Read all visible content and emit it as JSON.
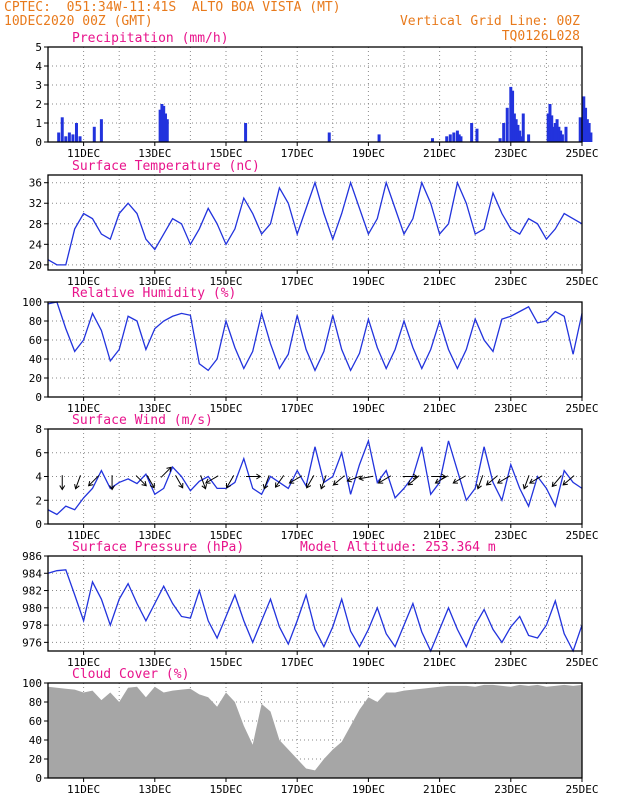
{
  "header": {
    "line1": "CPTEC:  051:34W-11:41S  ALTO BOA VISTA (MT)",
    "line2": "10DEC2020 00Z (GMT)",
    "grid_note": "Vertical Grid Line: 00Z",
    "code": "TQ0126L028"
  },
  "colors": {
    "header": "#e87a1c",
    "title": "#e8148c",
    "series": "#2233dd",
    "cloud": "#a6a6a6",
    "grid": "#8a8a8a"
  },
  "date_labels": [
    "11DEC",
    "13DEC",
    "15DEC",
    "17DEC",
    "19DEC",
    "21DEC",
    "23DEC",
    "25DEC"
  ],
  "chart_data": [
    {
      "type": "bar",
      "title": "Precipitation (mm/h)",
      "x_unit": "days since 10DEC2020 00Z",
      "ylim": [
        0,
        5
      ],
      "yticks": [
        0,
        1,
        2,
        3,
        4,
        5
      ],
      "x": [
        0.3,
        0.4,
        0.5,
        0.6,
        0.7,
        0.8,
        0.9,
        1.3,
        1.5,
        3.15,
        3.2,
        3.25,
        3.3,
        3.35,
        5.55,
        7.9,
        9.3,
        10.8,
        11.2,
        11.3,
        11.4,
        11.5,
        11.55,
        11.6,
        11.9,
        12.05,
        12.7,
        12.8,
        12.9,
        13.0,
        13.05,
        13.1,
        13.15,
        13.2,
        13.25,
        13.3,
        13.35,
        13.5,
        14.05,
        14.1,
        14.15,
        14.2,
        14.25,
        14.3,
        14.35,
        14.4,
        14.45,
        14.55,
        14.95,
        15.0,
        15.05,
        15.1,
        15.15,
        15.2,
        15.25
      ],
      "values": [
        0.5,
        1.3,
        0.3,
        0.5,
        0.4,
        1.0,
        0.3,
        0.8,
        1.2,
        1.7,
        2.0,
        1.9,
        1.5,
        1.2,
        1.0,
        0.5,
        0.4,
        0.2,
        0.3,
        0.4,
        0.5,
        0.6,
        0.4,
        0.3,
        1.0,
        0.7,
        0.2,
        1.0,
        1.8,
        2.9,
        2.7,
        1.5,
        1.2,
        0.9,
        0.6,
        0.3,
        1.5,
        0.4,
        1.5,
        2.0,
        1.4,
        0.8,
        1.0,
        1.2,
        0.8,
        0.6,
        0.4,
        0.8,
        1.3,
        0.8,
        2.4,
        1.8,
        1.2,
        1.0,
        0.5
      ]
    },
    {
      "type": "line",
      "title": "Surface Temperature (nC)",
      "x_unit": "days since 10DEC2020 00Z",
      "ylim": [
        19,
        37.5
      ],
      "yticks": [
        20,
        24,
        28,
        32,
        36
      ],
      "x": [
        0,
        0.25,
        0.5,
        0.75,
        1.0,
        1.25,
        1.5,
        1.75,
        2.0,
        2.25,
        2.5,
        2.75,
        3.0,
        3.25,
        3.5,
        3.75,
        4.0,
        4.25,
        4.5,
        4.75,
        5.0,
        5.25,
        5.5,
        5.75,
        6.0,
        6.25,
        6.5,
        6.75,
        7.0,
        7.25,
        7.5,
        7.75,
        8.0,
        8.25,
        8.5,
        8.75,
        9.0,
        9.25,
        9.5,
        9.75,
        10.0,
        10.25,
        10.5,
        10.75,
        11.0,
        11.25,
        11.5,
        11.75,
        12.0,
        12.25,
        12.5,
        12.75,
        13.0,
        13.25,
        13.5,
        13.75,
        14.0,
        14.25,
        14.5,
        14.75,
        15.0
      ],
      "values": [
        21,
        20,
        20,
        27,
        30,
        29,
        26,
        25,
        30,
        32,
        30,
        25,
        23,
        26,
        29,
        28,
        24,
        27,
        31,
        28,
        24,
        27,
        33,
        30,
        26,
        28,
        35,
        32,
        26,
        31,
        36,
        30,
        25,
        30,
        36,
        31,
        26,
        29,
        36,
        31,
        26,
        29,
        36,
        32,
        26,
        28,
        36,
        32,
        26,
        27,
        34,
        30,
        27,
        26,
        29,
        28,
        25,
        27,
        30,
        29,
        28
      ]
    },
    {
      "type": "line",
      "title": "Relative Humidity (%)",
      "x_unit": "days since 10DEC2020 00Z",
      "ylim": [
        0,
        100
      ],
      "yticks": [
        0,
        20,
        40,
        60,
        80,
        100
      ],
      "x": [
        0,
        0.25,
        0.5,
        0.75,
        1.0,
        1.25,
        1.5,
        1.75,
        2.0,
        2.25,
        2.5,
        2.75,
        3.0,
        3.25,
        3.5,
        3.75,
        4.0,
        4.25,
        4.5,
        4.75,
        5.0,
        5.25,
        5.5,
        5.75,
        6.0,
        6.25,
        6.5,
        6.75,
        7.0,
        7.25,
        7.5,
        7.75,
        8.0,
        8.25,
        8.5,
        8.75,
        9.0,
        9.25,
        9.5,
        9.75,
        10.0,
        10.25,
        10.5,
        10.75,
        11.0,
        11.25,
        11.5,
        11.75,
        12.0,
        12.25,
        12.5,
        12.75,
        13.0,
        13.25,
        13.5,
        13.75,
        14.0,
        14.25,
        14.5,
        14.75,
        15.0
      ],
      "values": [
        98,
        100,
        72,
        48,
        60,
        88,
        70,
        38,
        50,
        85,
        80,
        50,
        72,
        80,
        85,
        88,
        86,
        35,
        28,
        40,
        80,
        52,
        30,
        48,
        88,
        56,
        30,
        45,
        86,
        50,
        28,
        48,
        86,
        50,
        28,
        46,
        82,
        52,
        30,
        50,
        80,
        52,
        30,
        50,
        80,
        50,
        30,
        50,
        82,
        60,
        48,
        82,
        85,
        90,
        95,
        78,
        80,
        90,
        85,
        45,
        88
      ]
    },
    {
      "type": "line",
      "title": "Surface Wind (m/s)",
      "x_unit": "days since 10DEC2020 00Z",
      "ylim": [
        0,
        8
      ],
      "yticks": [
        0,
        2,
        4,
        6,
        8
      ],
      "x": [
        0,
        0.25,
        0.5,
        0.75,
        1.0,
        1.25,
        1.5,
        1.75,
        2.0,
        2.25,
        2.5,
        2.75,
        3.0,
        3.25,
        3.5,
        3.75,
        4.0,
        4.25,
        4.5,
        4.75,
        5.0,
        5.25,
        5.5,
        5.75,
        6.0,
        6.25,
        6.5,
        6.75,
        7.0,
        7.25,
        7.5,
        7.75,
        8.0,
        8.25,
        8.5,
        8.75,
        9.0,
        9.25,
        9.5,
        9.75,
        10.0,
        10.25,
        10.5,
        10.75,
        11.0,
        11.25,
        11.5,
        11.75,
        12.0,
        12.25,
        12.5,
        12.75,
        13.0,
        13.25,
        13.5,
        13.75,
        14.0,
        14.25,
        14.5,
        14.75,
        15.0
      ],
      "values": [
        1.2,
        0.8,
        1.5,
        1.2,
        2.2,
        3.0,
        4.5,
        3.0,
        3.5,
        3.8,
        3.4,
        4.2,
        2.5,
        3.0,
        4.8,
        4.0,
        2.8,
        3.6,
        4.0,
        3.0,
        3.0,
        3.5,
        5.5,
        3.0,
        2.5,
        4.0,
        3.5,
        3.0,
        4.5,
        3.2,
        6.5,
        3.5,
        4.0,
        6.0,
        2.5,
        5.0,
        7.0,
        3.5,
        4.5,
        2.2,
        3.0,
        4.0,
        6.5,
        2.5,
        3.5,
        7.0,
        4.5,
        2.0,
        3.0,
        6.5,
        3.5,
        2.0,
        5.0,
        3.0,
        1.5,
        4.0,
        3.0,
        1.5,
        4.5,
        3.5,
        3.0
      ]
    },
    {
      "type": "line",
      "title": "Surface Pressure (hPa)",
      "subtitle": "Model Altitude: 253.364 m",
      "x_unit": "days since 10DEC2020 00Z",
      "ylim": [
        975,
        986
      ],
      "yticks": [
        976,
        978,
        980,
        982,
        984,
        986
      ],
      "x": [
        0,
        0.25,
        0.5,
        0.75,
        1.0,
        1.25,
        1.5,
        1.75,
        2.0,
        2.25,
        2.5,
        2.75,
        3.0,
        3.25,
        3.5,
        3.75,
        4.0,
        4.25,
        4.5,
        4.75,
        5.0,
        5.25,
        5.5,
        5.75,
        6.0,
        6.25,
        6.5,
        6.75,
        7.0,
        7.25,
        7.5,
        7.75,
        8.0,
        8.25,
        8.5,
        8.75,
        9.0,
        9.25,
        9.5,
        9.75,
        10.0,
        10.25,
        10.5,
        10.75,
        11.0,
        11.25,
        11.5,
        11.75,
        12.0,
        12.25,
        12.5,
        12.75,
        13.0,
        13.25,
        13.5,
        13.75,
        14.0,
        14.25,
        14.5,
        14.75,
        15.0
      ],
      "values": [
        984,
        984.3,
        984.4,
        981.5,
        978.5,
        983,
        981,
        978,
        981,
        982.8,
        980.5,
        978.5,
        980.5,
        982.5,
        980.5,
        979,
        978.8,
        982,
        978.5,
        976.5,
        979,
        981.5,
        978.5,
        976,
        978.5,
        981,
        977.8,
        975.8,
        978.5,
        981.5,
        977.5,
        975.5,
        977.8,
        981,
        977.3,
        975.5,
        977.5,
        980,
        977,
        975.5,
        978,
        980.5,
        977.2,
        975,
        977.5,
        980,
        977.5,
        975.5,
        978,
        979.8,
        977.5,
        976,
        977.8,
        979,
        976.8,
        976.5,
        978,
        980.8,
        977,
        975,
        978
      ]
    },
    {
      "type": "area",
      "title": "Cloud Cover (%)",
      "x_unit": "days since 10DEC2020 00Z",
      "ylim": [
        0,
        100
      ],
      "yticks": [
        0,
        20,
        40,
        60,
        80,
        100
      ],
      "x": [
        0,
        0.25,
        0.5,
        0.75,
        1.0,
        1.25,
        1.5,
        1.75,
        2.0,
        2.25,
        2.5,
        2.75,
        3.0,
        3.25,
        3.5,
        3.75,
        4.0,
        4.25,
        4.5,
        4.75,
        5.0,
        5.25,
        5.5,
        5.75,
        6.0,
        6.25,
        6.5,
        6.75,
        7.0,
        7.25,
        7.5,
        7.75,
        8.0,
        8.25,
        8.5,
        8.75,
        9.0,
        9.25,
        9.5,
        9.75,
        10.0,
        10.25,
        10.5,
        10.75,
        11.0,
        11.25,
        11.5,
        11.75,
        12.0,
        12.25,
        12.5,
        12.75,
        13.0,
        13.25,
        13.5,
        13.75,
        14.0,
        14.25,
        14.5,
        14.75,
        15.0
      ],
      "values": [
        96,
        95,
        94,
        93,
        90,
        92,
        82,
        90,
        80,
        95,
        96,
        85,
        96,
        90,
        92,
        93,
        94,
        88,
        85,
        75,
        90,
        80,
        55,
        35,
        78,
        70,
        40,
        30,
        20,
        10,
        8,
        20,
        30,
        38,
        55,
        72,
        85,
        80,
        90,
        90,
        92,
        93,
        94,
        95,
        96,
        97,
        97,
        97,
        96,
        98,
        98,
        97,
        96,
        98,
        97,
        98,
        96,
        97,
        98,
        97,
        98
      ]
    }
  ],
  "wind_arrows": {
    "x": [
      0.4,
      0.9,
      1.4,
      1.8,
      2.5,
      2.8,
      3.2,
      3.6,
      4.3,
      4.75,
      5.2,
      5.6,
      6.2,
      6.6,
      7.1,
      7.45,
      7.8,
      8.3,
      8.75,
      9.1,
      9.6,
      10.0,
      10.4,
      10.8,
      11.2,
      11.7,
      12.2,
      12.6,
      12.95,
      13.5,
      13.85,
      14.4,
      14.75
    ],
    "dir_deg": [
      180,
      200,
      225,
      180,
      135,
      150,
      45,
      150,
      160,
      240,
      210,
      90,
      200,
      215,
      240,
      210,
      200,
      230,
      250,
      260,
      240,
      90,
      230,
      90,
      240,
      240,
      200,
      230,
      240,
      200,
      240,
      220,
      230
    ]
  }
}
